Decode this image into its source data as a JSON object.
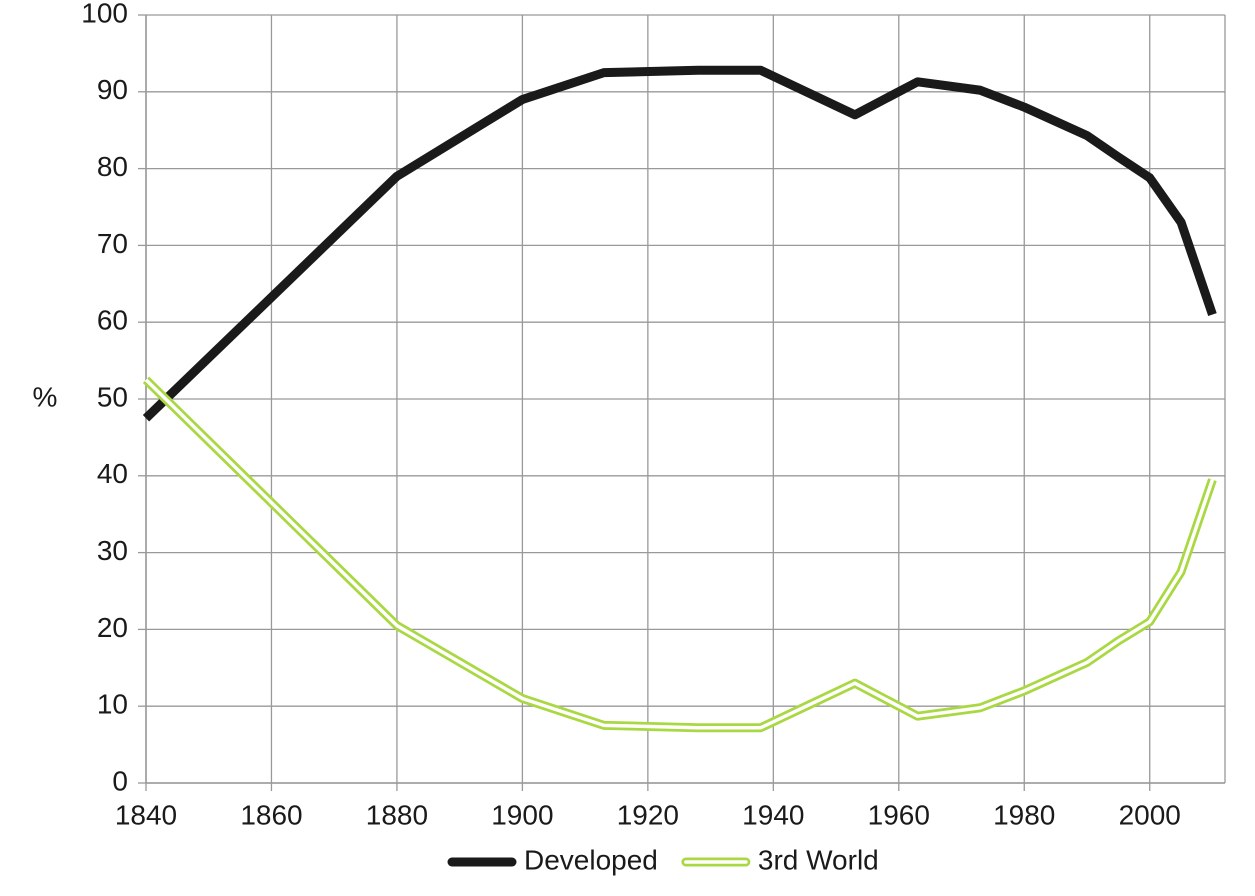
{
  "chart_data": {
    "type": "line",
    "y_label": "%",
    "xlim": [
      1840,
      2012
    ],
    "xticks": [
      1840,
      1860,
      1880,
      1900,
      1920,
      1940,
      1960,
      1980,
      2000
    ],
    "ylim": [
      0,
      100
    ],
    "yticks": [
      0,
      10,
      20,
      30,
      40,
      50,
      60,
      70,
      80,
      90,
      100
    ],
    "grid": true,
    "legend": "bottom",
    "series": [
      {
        "name": "Developed",
        "color": "#1a1a1a",
        "line_style": "solid",
        "x": [
          1840,
          1880,
          1900,
          1913,
          1928,
          1938,
          1953,
          1963,
          1973,
          1980,
          1990,
          1995,
          2000,
          2005,
          2010
        ],
        "values": [
          47.5,
          79,
          89,
          92.5,
          92.8,
          92.8,
          87,
          91.3,
          90.2,
          88,
          84.3,
          81.5,
          78.8,
          73,
          61
        ]
      },
      {
        "name": "3rd World",
        "color": "#a9d843",
        "line_style": "double",
        "x": [
          1840,
          1880,
          1900,
          1913,
          1928,
          1938,
          1953,
          1963,
          1973,
          1980,
          1990,
          1995,
          2000,
          2005,
          2010
        ],
        "values": [
          52.5,
          20.5,
          11,
          7.5,
          7.2,
          7.2,
          13,
          8.7,
          9.8,
          12,
          15.7,
          18.5,
          21,
          27.5,
          39.5
        ]
      }
    ]
  }
}
